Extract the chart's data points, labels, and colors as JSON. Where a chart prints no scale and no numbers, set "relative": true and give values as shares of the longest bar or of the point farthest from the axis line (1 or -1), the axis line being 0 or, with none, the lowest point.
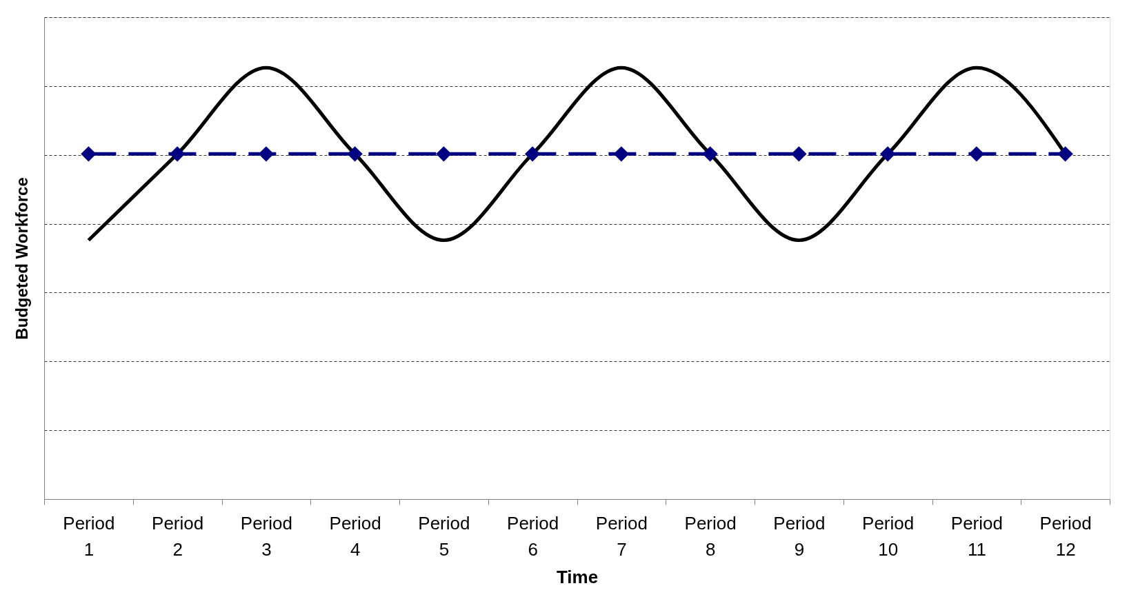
{
  "chart_data": {
    "type": "line",
    "relative": true,
    "xlabel": "Time",
    "ylabel": "Budgeted Workforce",
    "categories": [
      "Period 1",
      "Period 2",
      "Period 3",
      "Period 4",
      "Period 5",
      "Period 6",
      "Period 7",
      "Period 8",
      "Period 9",
      "Period 10",
      "Period 11",
      "Period 12"
    ],
    "series": [
      {
        "color": "#000000",
        "marker": "none",
        "line_style": "solid",
        "values": [
          0.6,
          0.8,
          1.0,
          0.8,
          0.6,
          0.8,
          1.0,
          0.8,
          0.6,
          0.8,
          1.0,
          0.8
        ]
      },
      {
        "color": "#000080",
        "marker": "diamond",
        "line_style": "dashed",
        "values": [
          0.8,
          0.8,
          0.8,
          0.8,
          0.8,
          0.8,
          0.8,
          0.8,
          0.8,
          0.8,
          0.8,
          0.8
        ]
      }
    ],
    "grid": "y"
  }
}
